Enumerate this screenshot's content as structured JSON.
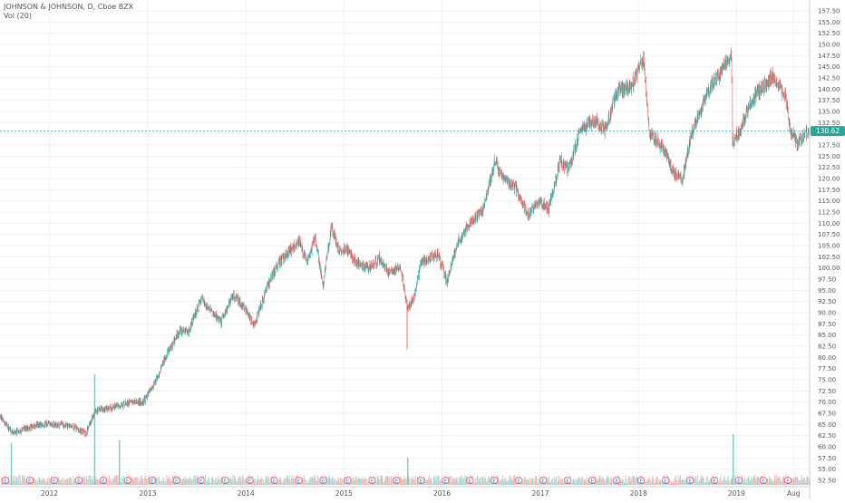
{
  "legend": {
    "title": "JOHNSON & JOHNSON, D, Cboe BZX",
    "volume": "Vol (20)"
  },
  "price_badge": "130.62",
  "x_labels": [
    "2012",
    "2013",
    "2014",
    "2015",
    "2016",
    "2017",
    "2018",
    "2019",
    "Aug"
  ],
  "colors": {
    "up": "#26a69a",
    "down": "#ef5350",
    "grid": "#eef1f5",
    "accent": "#26a69a",
    "event_badge": "#ef5350",
    "axis_text": "#555555"
  },
  "chart_data": {
    "type": "candlestick",
    "title": "JOHNSON & JOHNSON, D, Cboe BZX",
    "ylim": [
      52.5,
      157.5
    ],
    "y_ticks": [
      52.5,
      55,
      57.5,
      60,
      62.5,
      65,
      67.5,
      70,
      72.5,
      75,
      77.5,
      80,
      82.5,
      85,
      87.5,
      90,
      92.5,
      95,
      97.5,
      100,
      102.5,
      105,
      107.5,
      110,
      112.5,
      115,
      117.5,
      120,
      122.5,
      125,
      127.5,
      130,
      132.5,
      135,
      137.5,
      140,
      142.5,
      145,
      147.5,
      150,
      152.5,
      155,
      157.5
    ],
    "y_tick_labels": [
      "52.50",
      "55.00",
      "57.50",
      "60.00",
      "62.50",
      "65.00",
      "67.50",
      "70.00",
      "72.50",
      "75.00",
      "77.50",
      "80.00",
      "82.50",
      "85.00",
      "87.50",
      "90.00",
      "92.50",
      "95.00",
      "97.50",
      "100.00",
      "102.50",
      "105.00",
      "107.50",
      "110.00",
      "112.50",
      "115.00",
      "117.50",
      "120.00",
      "122.50",
      "125.00",
      "127.50",
      "130.00",
      "132.50",
      "135.00",
      "137.50",
      "140.00",
      "142.50",
      "145.00",
      "147.50",
      "150.00",
      "152.50",
      "155.00",
      "157.50"
    ],
    "x_range": [
      "2011-07-01",
      "2019-09-30"
    ],
    "x_ticks": [
      "2012-01-01",
      "2013-01-01",
      "2014-01-01",
      "2015-01-01",
      "2016-01-01",
      "2017-01-01",
      "2018-01-01",
      "2019-01-01",
      "2019-08-01"
    ],
    "last_price": 130.62,
    "price_path": [
      [
        "2011-07-01",
        67
      ],
      [
        "2011-08-15",
        63
      ],
      [
        "2011-10-01",
        64
      ],
      [
        "2011-12-01",
        65
      ],
      [
        "2012-02-01",
        65
      ],
      [
        "2012-04-01",
        64.5
      ],
      [
        "2012-05-15",
        63
      ],
      [
        "2012-06-20",
        68
      ],
      [
        "2012-09-01",
        69
      ],
      [
        "2012-11-01",
        70
      ],
      [
        "2012-12-15",
        70
      ],
      [
        "2013-02-01",
        75
      ],
      [
        "2013-03-15",
        81
      ],
      [
        "2013-05-01",
        86
      ],
      [
        "2013-06-01",
        86
      ],
      [
        "2013-07-20",
        93
      ],
      [
        "2013-08-15",
        91
      ],
      [
        "2013-10-01",
        88
      ],
      [
        "2013-11-15",
        94
      ],
      [
        "2013-12-31",
        91
      ],
      [
        "2014-02-01",
        87
      ],
      [
        "2014-03-15",
        95
      ],
      [
        "2014-05-01",
        101
      ],
      [
        "2014-06-15",
        104
      ],
      [
        "2014-07-20",
        106
      ],
      [
        "2014-08-15",
        101
      ],
      [
        "2014-09-15",
        107
      ],
      [
        "2014-10-15",
        96
      ],
      [
        "2014-11-15",
        109
      ],
      [
        "2014-12-15",
        104
      ],
      [
        "2015-01-15",
        104
      ],
      [
        "2015-02-15",
        101
      ],
      [
        "2015-04-01",
        100
      ],
      [
        "2015-05-15",
        102
      ],
      [
        "2015-06-15",
        99
      ],
      [
        "2015-08-01",
        100
      ],
      [
        "2015-08-24",
        91
      ],
      [
        "2015-09-15",
        93
      ],
      [
        "2015-10-15",
        101
      ],
      [
        "2015-12-15",
        103
      ],
      [
        "2016-01-20",
        97
      ],
      [
        "2016-03-01",
        106
      ],
      [
        "2016-04-15",
        110
      ],
      [
        "2016-06-01",
        113
      ],
      [
        "2016-07-15",
        124
      ],
      [
        "2016-08-15",
        120
      ],
      [
        "2016-10-01",
        118
      ],
      [
        "2016-11-15",
        112
      ],
      [
        "2016-12-31",
        115
      ],
      [
        "2017-02-01",
        113
      ],
      [
        "2017-03-15",
        124
      ],
      [
        "2017-04-15",
        122
      ],
      [
        "2017-06-01",
        131
      ],
      [
        "2017-07-15",
        133
      ],
      [
        "2017-09-01",
        131
      ],
      [
        "2017-10-15",
        140
      ],
      [
        "2017-12-01",
        140
      ],
      [
        "2018-01-20",
        147
      ],
      [
        "2018-02-10",
        130
      ],
      [
        "2018-03-01",
        129
      ],
      [
        "2018-04-01",
        127
      ],
      [
        "2018-05-15",
        121
      ],
      [
        "2018-06-15",
        120
      ],
      [
        "2018-07-15",
        130
      ],
      [
        "2018-09-01",
        137
      ],
      [
        "2018-10-01",
        141
      ],
      [
        "2018-11-15",
        145
      ],
      [
        "2018-12-13",
        147
      ],
      [
        "2018-12-17",
        128
      ],
      [
        "2019-01-15",
        131
      ],
      [
        "2019-02-15",
        136
      ],
      [
        "2019-03-15",
        139
      ],
      [
        "2019-04-15",
        141
      ],
      [
        "2019-05-15",
        143
      ],
      [
        "2019-06-15",
        140
      ],
      [
        "2019-07-01",
        139
      ],
      [
        "2019-07-20",
        131
      ],
      [
        "2019-08-15",
        128
      ],
      [
        "2019-09-30",
        130.6
      ]
    ],
    "volume_spikes": [
      [
        "2011-08-10",
        14
      ],
      [
        "2012-06-15",
        37
      ],
      [
        "2012-09-15",
        15
      ],
      [
        "2015-08-24",
        9
      ],
      [
        "2018-12-17",
        17
      ]
    ],
    "earnings_markers": "E"
  }
}
